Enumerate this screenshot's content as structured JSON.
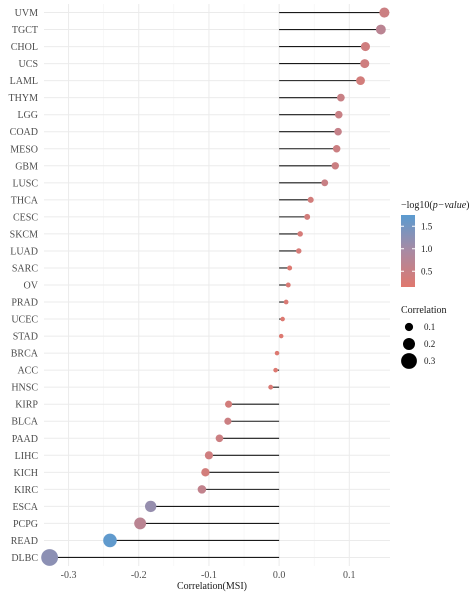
{
  "chart_data": {
    "type": "lollipop",
    "xlabel": "Correlation(MSI)",
    "ylabel": "",
    "xlim": [
      -0.335,
      0.158
    ],
    "x_ticks": [
      -0.3,
      -0.2,
      -0.1,
      0.0,
      0.1
    ],
    "x_tick_labels": [
      "-0.3",
      "-0.2",
      "-0.1",
      "0.0",
      "0.1"
    ],
    "grid": true,
    "categories": [
      "UVM",
      "TGCT",
      "CHOL",
      "UCS",
      "LAML",
      "THYM",
      "LGG",
      "COAD",
      "MESO",
      "GBM",
      "LUSC",
      "THCA",
      "CESC",
      "SKCM",
      "LUAD",
      "SARC",
      "OV",
      "PRAD",
      "UCEC",
      "STAD",
      "BRCA",
      "ACC",
      "HNSC",
      "KIRP",
      "BLCA",
      "PAAD",
      "LIHC",
      "KICH",
      "KIRC",
      "ESCA",
      "PCPG",
      "READ",
      "DLBC"
    ],
    "correlation": [
      0.15,
      0.145,
      0.123,
      0.122,
      0.116,
      0.088,
      0.085,
      0.084,
      0.082,
      0.08,
      0.065,
      0.045,
      0.04,
      0.03,
      0.028,
      0.015,
      0.013,
      0.01,
      0.005,
      0.003,
      -0.003,
      -0.005,
      -0.012,
      -0.072,
      -0.073,
      -0.085,
      -0.1,
      -0.105,
      -0.11,
      -0.183,
      -0.198,
      -0.241,
      -0.327
    ],
    "neg_log10_p": [
      0.45,
      0.7,
      0.4,
      0.4,
      0.35,
      0.5,
      0.5,
      0.55,
      0.45,
      0.45,
      0.5,
      0.35,
      0.35,
      0.3,
      0.3,
      0.2,
      0.25,
      0.25,
      0.2,
      0.2,
      0.2,
      0.2,
      0.25,
      0.35,
      0.45,
      0.45,
      0.4,
      0.35,
      0.6,
      1.15,
      0.7,
      1.7,
      1.25
    ],
    "legend_color": {
      "title_prefix": "−log10(",
      "title_italic": "p−value",
      "title_suffix": ")",
      "ticks": [
        "0.5",
        "1.0",
        "1.5"
      ],
      "tick_values": [
        0.5,
        1.0,
        1.5
      ],
      "range": [
        0.15,
        1.75
      ],
      "low_color": "#e0786e",
      "high_color": "#5b9bd0",
      "placement": "right"
    },
    "legend_size": {
      "title": "Correlation",
      "labels": [
        "0.1",
        "0.2",
        "0.3"
      ],
      "values": [
        0.1,
        0.2,
        0.3
      ],
      "placement": "right"
    }
  }
}
